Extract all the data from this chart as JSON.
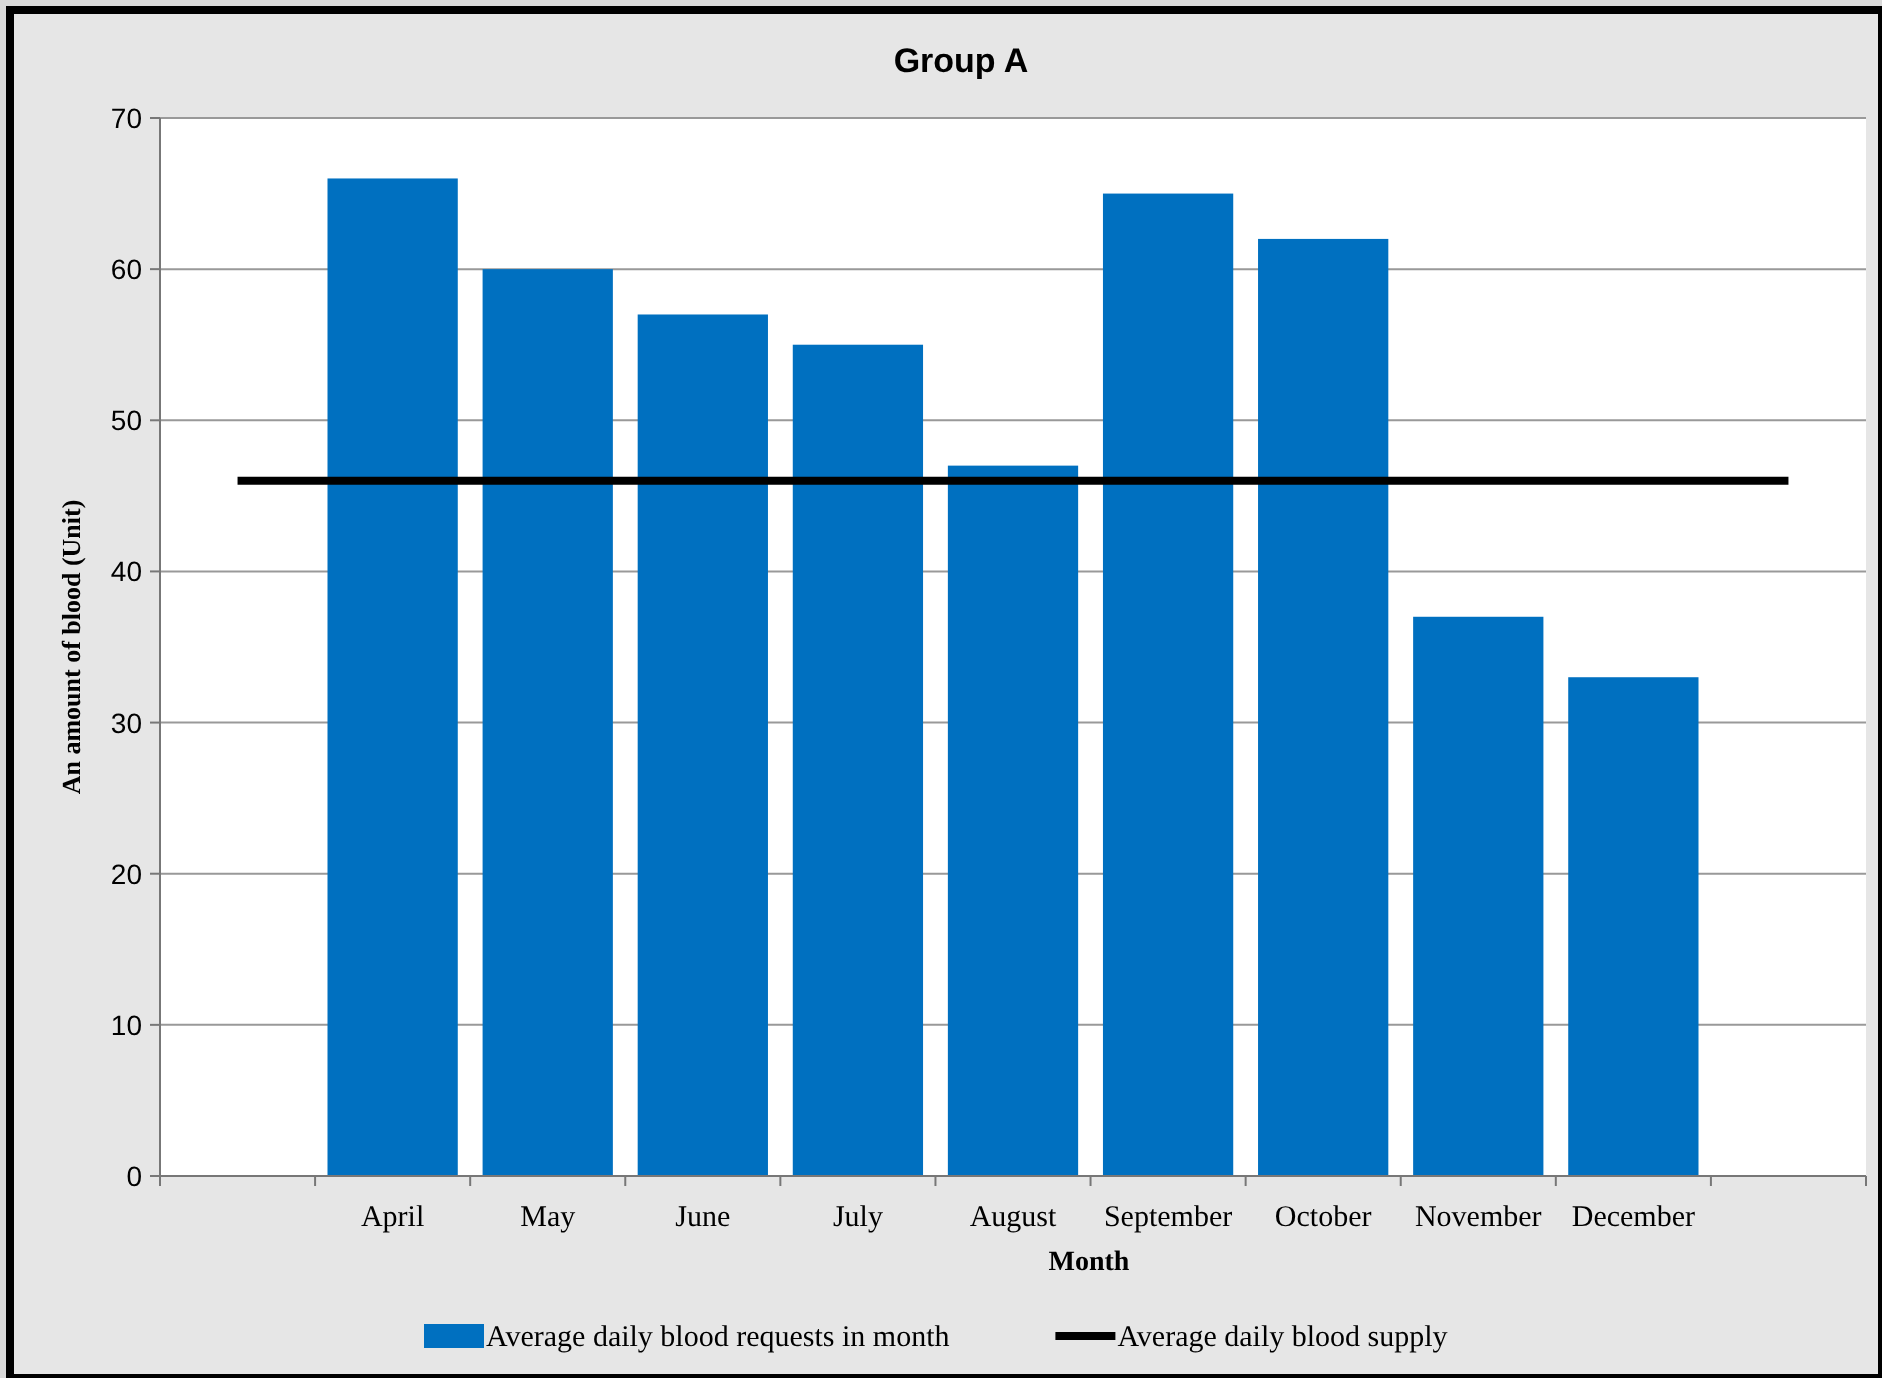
{
  "chart_data": {
    "type": "bar",
    "title": "Group A",
    "xlabel": "Month",
    "ylabel": "An amount of blood (Unit)",
    "categories": [
      null,
      "April",
      "May",
      "June",
      "July",
      "August",
      "September",
      "October",
      "November",
      "December",
      null
    ],
    "series": [
      {
        "name": "Average daily blood requests in month",
        "color": "#0070c0",
        "values": [
          null,
          66,
          60,
          57,
          55,
          47,
          65,
          62,
          37,
          33,
          null
        ]
      },
      {
        "name": "Average daily blood supply",
        "type": "line",
        "color": "#000000",
        "values": [
          46,
          46,
          46,
          46,
          46,
          46,
          46,
          46,
          46,
          46,
          46
        ]
      }
    ],
    "ylim": [
      0,
      70
    ],
    "yticks": [
      0,
      10,
      20,
      30,
      40,
      50,
      60,
      70
    ],
    "grid": "y",
    "legend": "bottom",
    "marker": "none",
    "line_style": "solid"
  }
}
